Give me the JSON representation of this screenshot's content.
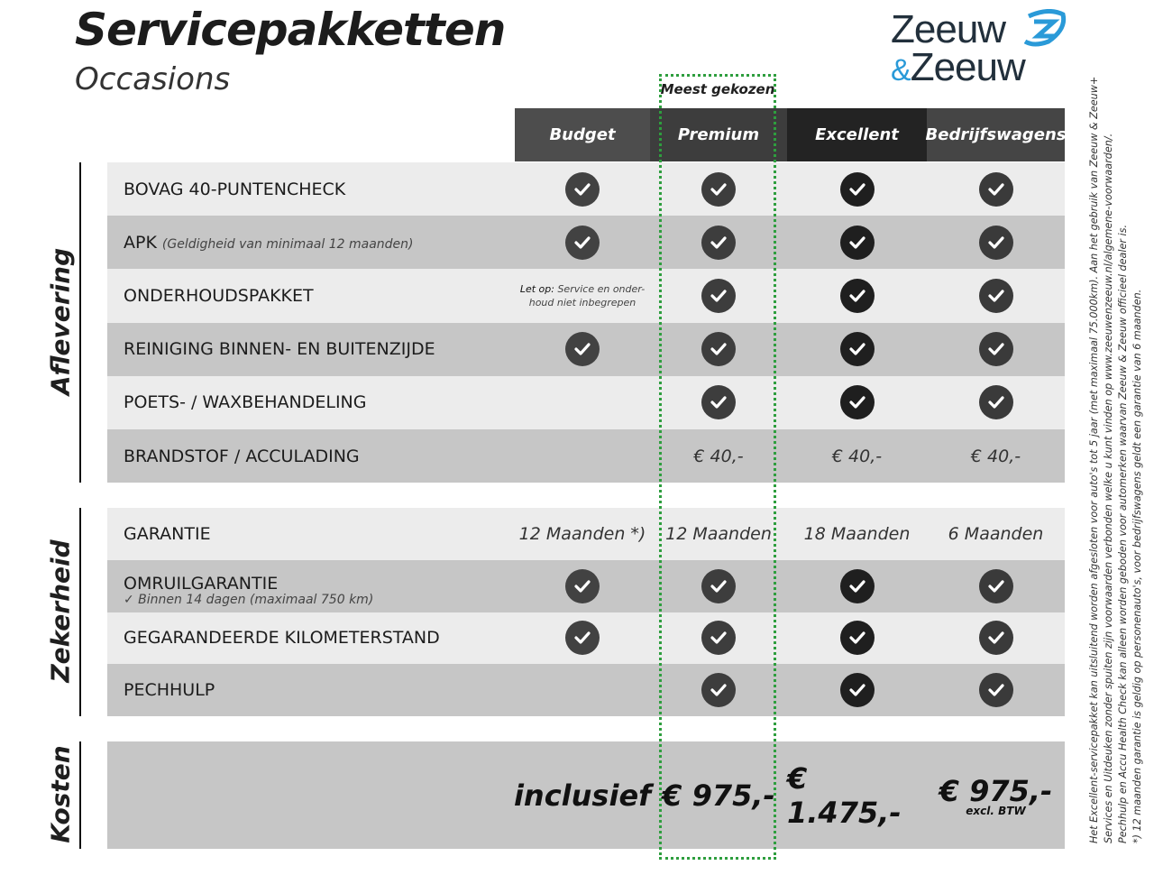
{
  "header": {
    "title": "Servicepakketten",
    "subtitle": "Occasions",
    "logo_text": [
      "Zeeuw",
      "&",
      "Zeeuw"
    ],
    "most_chosen": "Meest gekozen"
  },
  "columns": [
    {
      "label": "Budget",
      "color": "#4d4d4d",
      "check_color": "#424242"
    },
    {
      "label": "Premium",
      "color": "#3d3d3d",
      "check_color": "#3d3d3d"
    },
    {
      "label": "Excellent",
      "color": "#232323",
      "check_color": "#1f1f1f"
    },
    {
      "label": "Bedrijfswagens",
      "color": "#454545",
      "check_color": "#3a3a3a"
    }
  ],
  "sections": [
    {
      "label": "Aflevering",
      "rows": [
        {
          "label": "BOVAG 40-PUNTENCHECK",
          "cells": [
            "check",
            "check",
            "check",
            "check"
          ]
        },
        {
          "label": "APK",
          "note": "(Geldigheid van minimaal 12 maanden)",
          "cells": [
            "check",
            "check",
            "check",
            "check"
          ]
        },
        {
          "label": "ONDERHOUDSPAKKET",
          "cells": [
            {
              "bold": "Let op:",
              "text": "Service en onder-houd niet inbegrepen"
            },
            "check",
            "check",
            "check"
          ]
        },
        {
          "label": "REINIGING BINNEN- EN BUITENZIJDE",
          "cells": [
            "check",
            "check",
            "check",
            "check"
          ]
        },
        {
          "label": "POETS- / WAXBEHANDELING",
          "cells": [
            "",
            "check",
            "check",
            "check"
          ]
        },
        {
          "label": "BRANDSTOF / ACCULADING",
          "cells": [
            "",
            "€ 40,-",
            "€ 40,-",
            "€ 40,-"
          ]
        }
      ]
    },
    {
      "label": "Zekerheid",
      "rows": [
        {
          "label": "GARANTIE",
          "cells": [
            "12 Maanden *)",
            "12 Maanden",
            "18 Maanden",
            "6 Maanden"
          ]
        },
        {
          "label": "OMRUILGARANTIE",
          "sub": "✓   Binnen 14 dagen (maximaal 750 km)",
          "cells": [
            "check",
            "check",
            "check",
            "check"
          ]
        },
        {
          "label": "GEGARANDEERDE KILOMETERSTAND",
          "cells": [
            "check",
            "check",
            "check",
            "check"
          ]
        },
        {
          "label": "PECHHULP",
          "cells": [
            "",
            "check",
            "check",
            "check"
          ]
        }
      ]
    },
    {
      "label": "Kosten",
      "rows": [
        {
          "label": "",
          "cells": [
            "inclusief",
            "€ 975,-",
            "€ 1.475,-",
            {
              "text": "€ 975,-",
              "small": "excl. BTW"
            }
          ]
        }
      ]
    }
  ],
  "footnotes": [
    "Het Excellent-servicepakket kan uitsluitend worden afgesloten voor auto's tot 5 jaar (met maximaal 75.000km). Aan het gebruik van Zeeuw & Zeeuw+",
    "Services en Uitdeuken zonder spuiten zijn voorwaarden verbonden welke u kunt vinden op www.zeeuwenzeeuw.nl/algemene-voorwaarden/.",
    "Pechhulp en Accu Health Check kan alleen worden geboden voor automerken waarvan Zeeuw & Zeeuw officieel dealer is.",
    "*) 12 maanden garantie is geldig op personenauto's, voor bedrijfswagens geldt een garantie van 6 maanden."
  ]
}
